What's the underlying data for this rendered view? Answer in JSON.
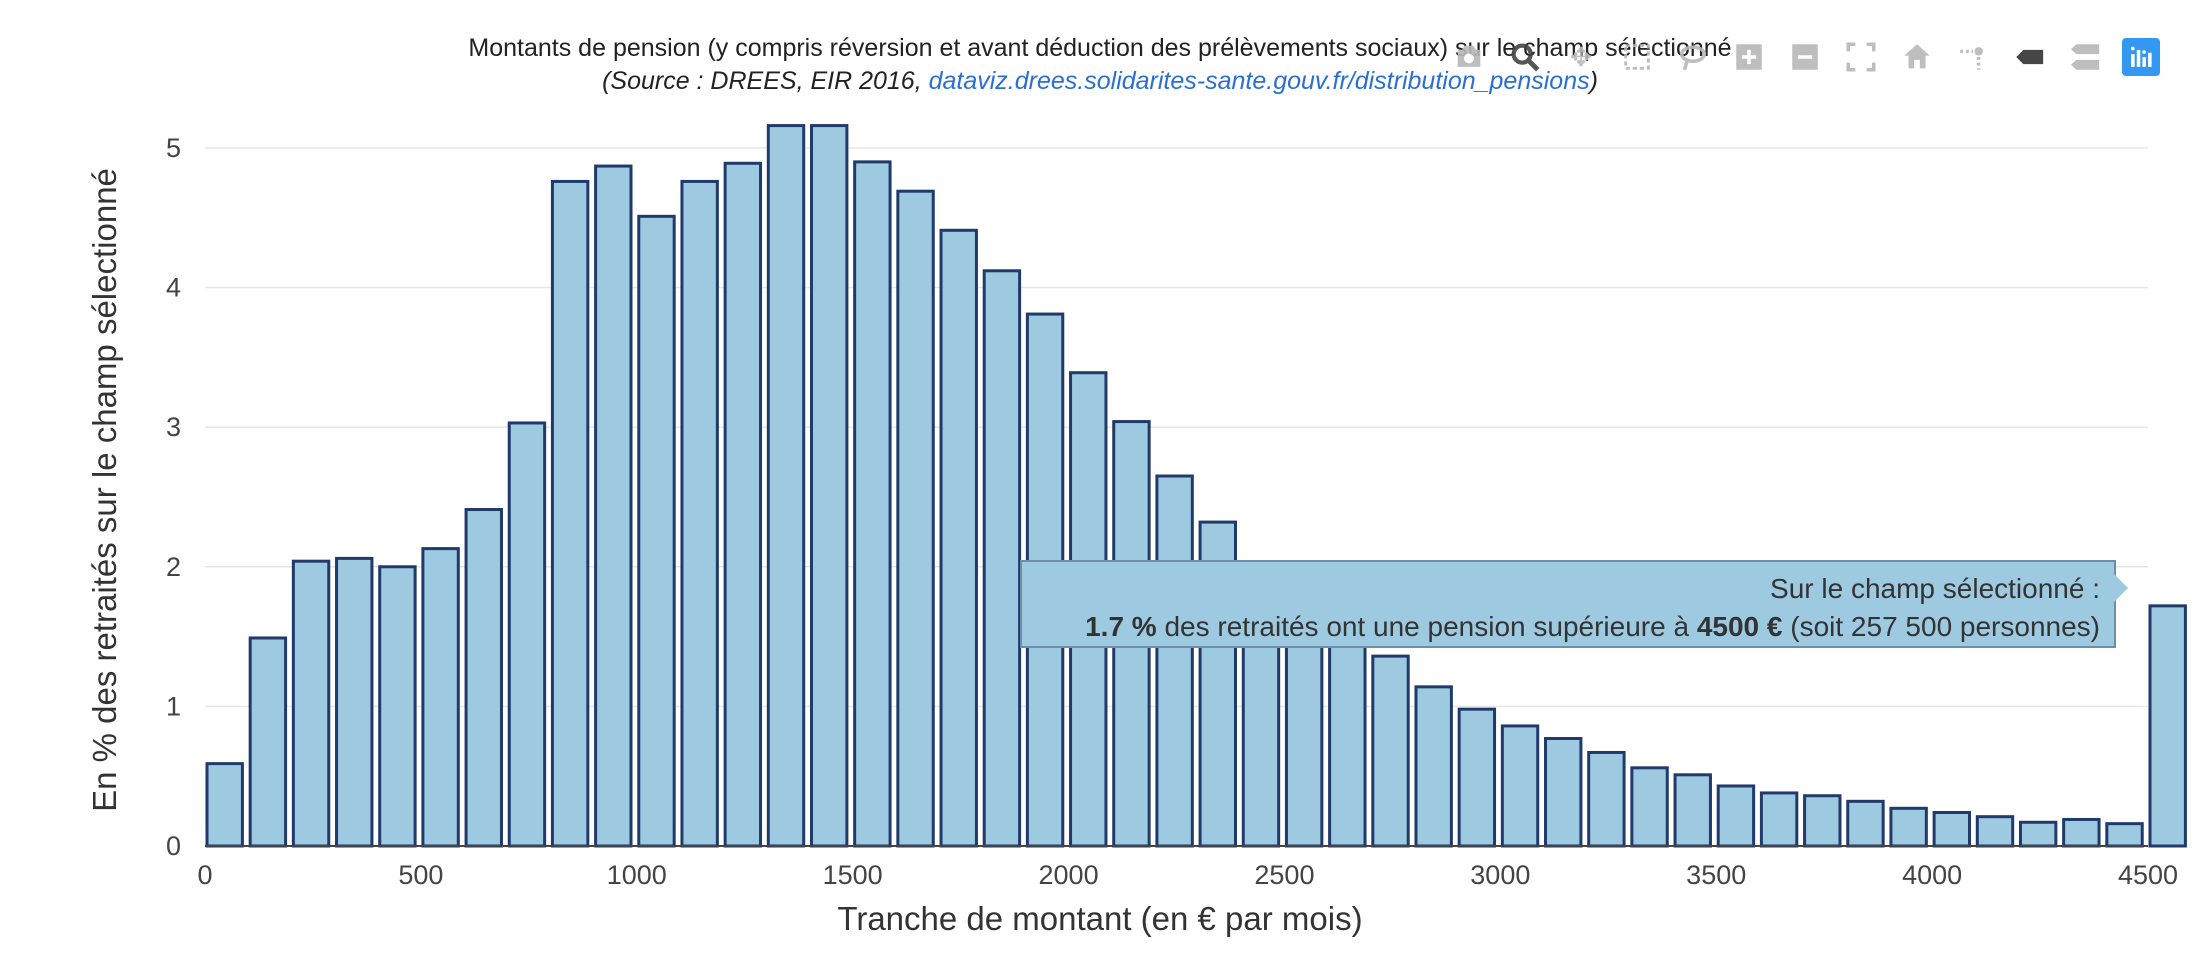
{
  "title": "Montants de pension (y compris réversion et avant déduction des prélèvements sociaux) sur le champ sélectionné",
  "subtitle": {
    "prefix": "(Source : DREES, EIR 2016, ",
    "link": "dataviz.drees.solidarites-sante.gouv.fr/distribution_pensions",
    "suffix": ")"
  },
  "tooltip": {
    "line1": "Sur le champ sélectionné :",
    "pct": "1.7 %",
    "mid": " des retraités ont une pension supérieure à ",
    "amount": "4500 €",
    "end": " (soit 257 500 personnes)"
  },
  "modebar": [
    "camera-icon",
    "zoom-icon",
    "pan-icon",
    "box-select-icon",
    "lasso-icon",
    "zoom-in-icon",
    "zoom-out-icon",
    "autoscale-icon",
    "home-icon",
    "spike-icon",
    "hover-closest-icon",
    "hover-compare-icon",
    "plotly-logo-icon"
  ],
  "colors": {
    "bar_fill": "#9ecae1",
    "bar_stroke": "#1f3a6b",
    "grid": "#e6e6e6"
  },
  "chart_data": {
    "type": "bar",
    "xlabel": "Tranche de montant (en € par mois)",
    "ylabel": "En % des retraités sur le champ sélectionné",
    "xlim": [
      0,
      4500
    ],
    "ylim": [
      0,
      5.2
    ],
    "x_ticks": [
      0,
      500,
      1000,
      1500,
      2000,
      2500,
      3000,
      3500,
      4000,
      4500
    ],
    "x_tick_labels": [
      "0",
      "500",
      "1000",
      "1500",
      "2000",
      "2500",
      "3000",
      "3500",
      "4000",
      "4500"
    ],
    "y_ticks": [
      0,
      1,
      2,
      3,
      4,
      5
    ],
    "y_tick_labels": [
      "0",
      "1",
      "2",
      "3",
      "4",
      "5"
    ],
    "bin_width": 100,
    "bin_starts": [
      0,
      100,
      200,
      300,
      400,
      500,
      600,
      700,
      800,
      900,
      1000,
      1100,
      1200,
      1300,
      1400,
      1500,
      1600,
      1700,
      1800,
      1900,
      2000,
      2100,
      2200,
      2300,
      2400,
      2500,
      2600,
      2700,
      2800,
      2900,
      3000,
      3100,
      3200,
      3300,
      3400,
      3500,
      3600,
      3700,
      3800,
      3900,
      4000,
      4100,
      4200,
      4300,
      4400,
      4500
    ],
    "values": [
      0.59,
      1.49,
      2.04,
      2.06,
      2.0,
      2.13,
      2.41,
      3.03,
      4.76,
      4.87,
      4.51,
      4.76,
      4.89,
      5.16,
      5.16,
      4.9,
      4.69,
      4.41,
      4.12,
      3.81,
      3.39,
      3.04,
      2.65,
      2.32,
      2.0,
      1.8,
      1.6,
      1.36,
      1.14,
      0.98,
      0.86,
      0.77,
      0.67,
      0.56,
      0.51,
      0.43,
      0.38,
      0.36,
      0.32,
      0.27,
      0.24,
      0.21,
      0.17,
      0.19,
      0.16,
      1.72
    ],
    "grid": true
  }
}
